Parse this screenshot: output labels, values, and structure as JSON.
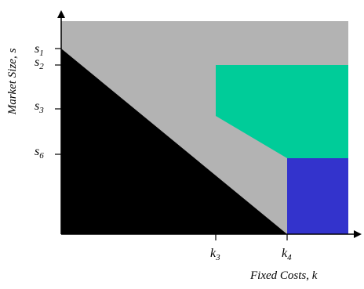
{
  "colors": {
    "background": "#ffffff",
    "region_gray": "#b3b3b3",
    "region_black": "#000000",
    "region_green": "#00cc99",
    "region_blue": "#3333cc",
    "axis": "#000000"
  },
  "y_axis": {
    "label": "Market Size, s",
    "ticks": [
      {
        "base": "s",
        "sub": "1"
      },
      {
        "base": "s",
        "sub": "2"
      },
      {
        "base": "s",
        "sub": "3"
      },
      {
        "base": "s",
        "sub": "6"
      }
    ]
  },
  "x_axis": {
    "label": "Fixed Costs, k",
    "ticks": [
      {
        "base": "k",
        "sub": "3"
      },
      {
        "base": "k",
        "sub": "4"
      }
    ]
  },
  "regions": [
    {
      "name": "gray-region",
      "color": "region_gray"
    },
    {
      "name": "black-region",
      "color": "region_black"
    },
    {
      "name": "green-region",
      "color": "region_green"
    },
    {
      "name": "blue-region",
      "color": "region_blue"
    }
  ]
}
